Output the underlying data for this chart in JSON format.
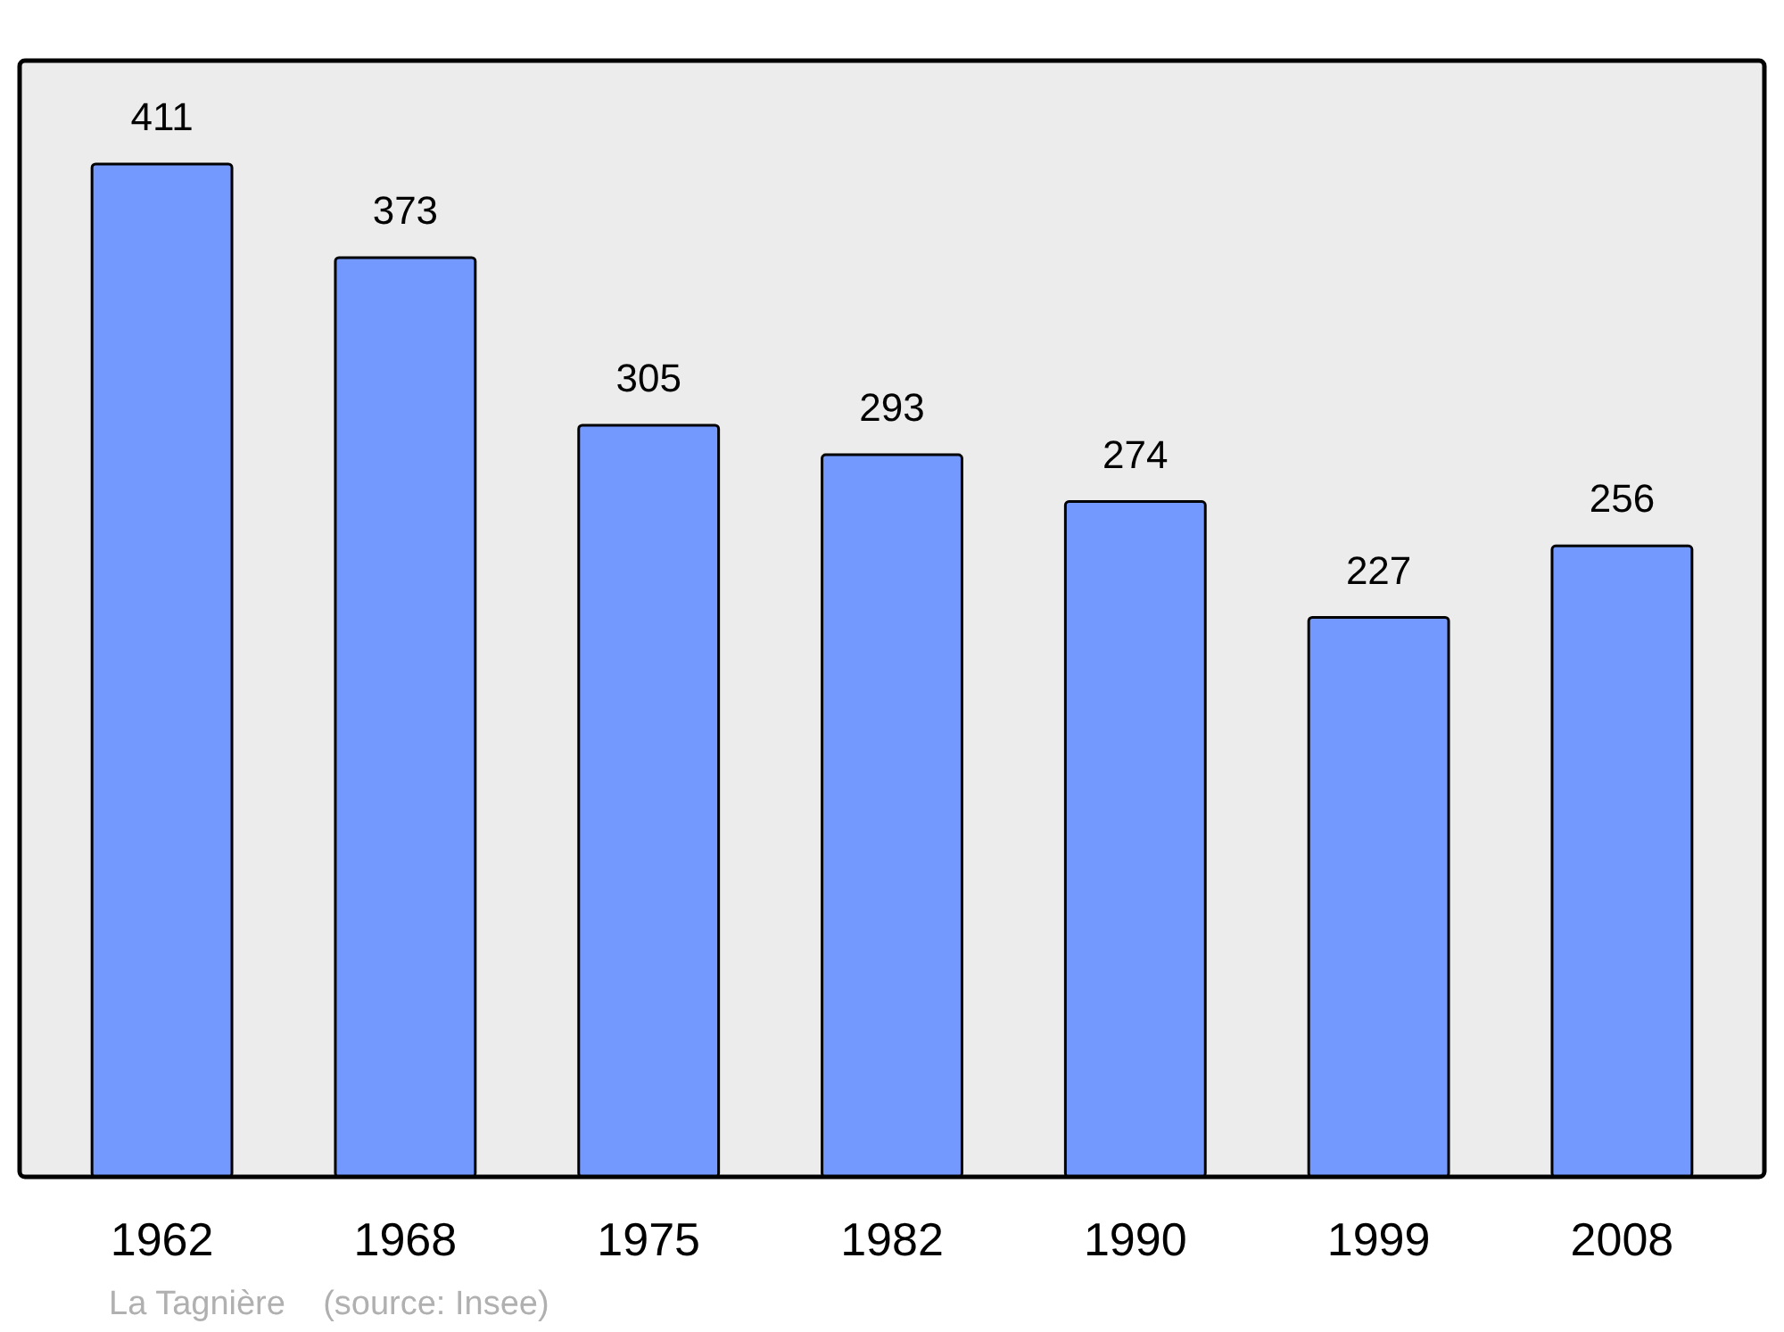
{
  "chart_data": {
    "type": "bar",
    "categories": [
      "1962",
      "1968",
      "1975",
      "1982",
      "1990",
      "1999",
      "2008"
    ],
    "values": [
      411,
      373,
      305,
      293,
      274,
      227,
      256
    ],
    "color": "#7399ff",
    "data_labels": true,
    "annotations": [
      "La Tagnière    (source: Insee)"
    ]
  }
}
